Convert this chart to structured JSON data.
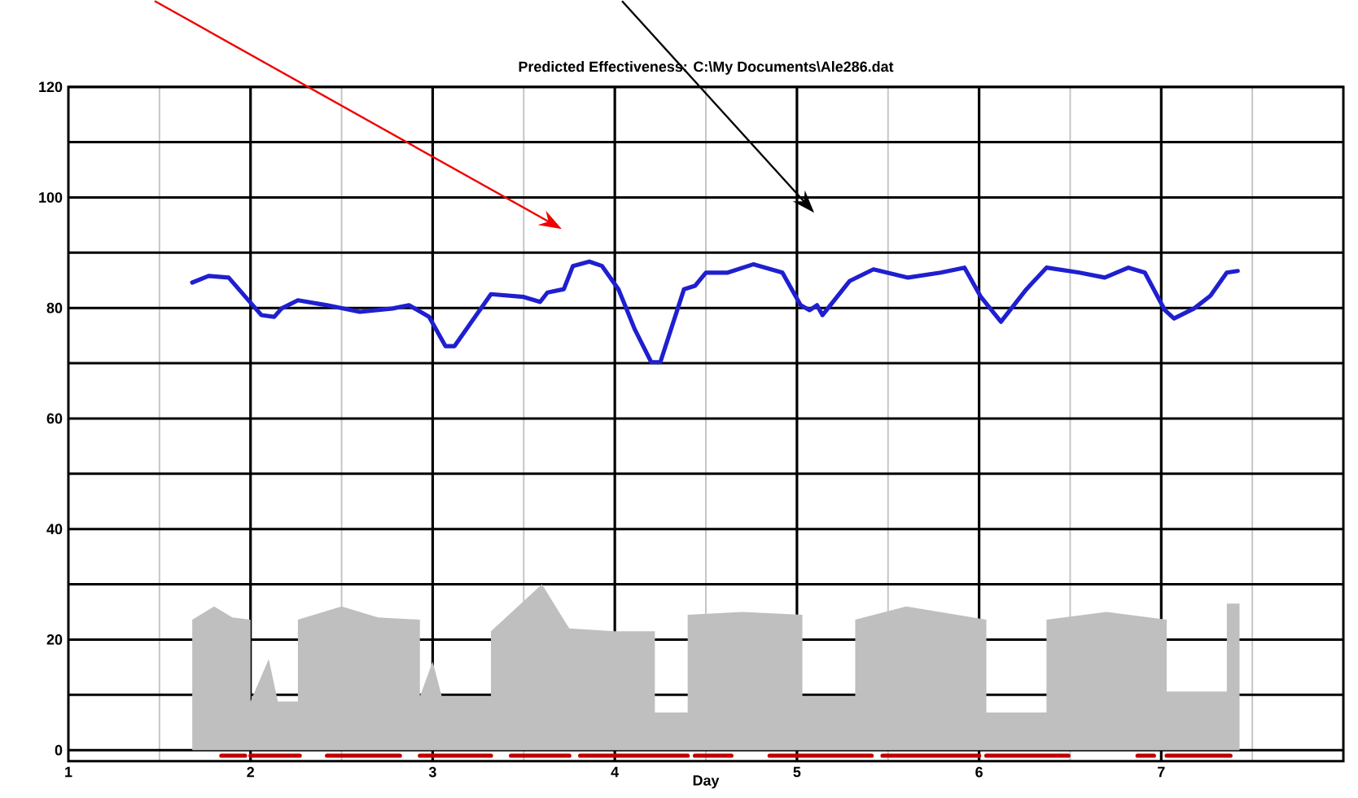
{
  "chart_data": {
    "type": "line",
    "title": "Predicted Effectiveness: C:\\My Documents\\Ale286.dat",
    "xlabel": "Day",
    "xlim": [
      1,
      8
    ],
    "ylim": [
      -2,
      120
    ],
    "xticks": [
      1,
      {
        "value": 1.5,
        "label": null
      },
      2,
      {
        "value": 2.5,
        "label": null
      },
      3,
      {
        "value": 3.5,
        "label": null
      },
      4,
      {
        "value": 4.5,
        "label": null
      },
      5,
      {
        "value": 5.5,
        "label": null
      },
      6,
      {
        "value": 6.5,
        "label": null
      },
      7,
      {
        "value": 7.5,
        "label": null
      }
    ],
    "yticks": [
      0,
      {
        "value": 10,
        "label": null
      },
      20,
      {
        "value": 30,
        "label": null
      },
      40,
      {
        "value": 50,
        "label": null
      },
      60,
      {
        "value": 70,
        "label": null
      },
      80,
      {
        "value": 90,
        "label": null
      },
      100,
      {
        "value": 110,
        "label": null
      },
      120
    ],
    "grid": true,
    "series": [
      {
        "type": "area",
        "color": "#bfbfbf",
        "x": [
          1.68,
          1.68,
          1.8,
          1.9,
          2.0,
          2.0,
          2.1,
          2.15,
          2.26,
          2.26,
          2.5,
          2.7,
          2.93,
          2.93,
          3.0,
          3.05,
          3.32,
          3.32,
          3.6,
          3.75,
          4.0,
          4.22,
          4.22,
          4.4,
          4.4,
          4.7,
          5.03,
          5.03,
          5.2,
          5.32,
          5.32,
          5.6,
          6.04,
          6.04,
          6.2,
          6.37,
          6.37,
          6.7,
          7.03,
          7.03,
          7.2,
          7.36,
          7.36,
          7.43,
          7.43
        ],
        "values": [
          0,
          23.6,
          26,
          24,
          23.6,
          8.8,
          16.5,
          8.8,
          8.8,
          23.6,
          26,
          24,
          23.6,
          9.7,
          16,
          9.7,
          9.7,
          21.5,
          30,
          22,
          21.5,
          21.5,
          6.8,
          6.8,
          24.5,
          25,
          24.5,
          9.7,
          9.7,
          9.7,
          23.6,
          26,
          23.6,
          6.8,
          6.8,
          6.8,
          23.6,
          25,
          23.6,
          10.6,
          10.6,
          10.6,
          26.5,
          26.5,
          0
        ]
      },
      {
        "color": "#1f1fd0",
        "x": [
          1.68,
          1.77,
          1.88,
          2.02,
          2.06,
          2.13,
          2.17,
          2.26,
          2.42,
          2.6,
          2.78,
          2.87,
          2.98,
          3.07,
          3.12,
          3.32,
          3.5,
          3.59,
          3.63,
          3.72,
          3.77,
          3.86,
          3.93,
          4.02,
          4.11,
          4.2,
          4.25,
          4.38,
          4.44,
          4.5,
          4.62,
          4.76,
          4.92,
          5.02,
          5.07,
          5.11,
          5.14,
          5.29,
          5.42,
          5.61,
          5.79,
          5.92,
          6.01,
          6.12,
          6.26,
          6.37,
          6.55,
          6.69,
          6.82,
          6.91,
          7.02,
          7.07,
          7.18,
          7.27,
          7.36,
          7.42
        ],
        "values": [
          84.6,
          85.8,
          85.5,
          80.2,
          78.7,
          78.4,
          79.9,
          81.4,
          80.5,
          79.3,
          79.9,
          80.5,
          78.4,
          73.1,
          73.1,
          82.5,
          82,
          81.1,
          82.8,
          83.4,
          87.6,
          88.4,
          87.6,
          83.4,
          76.1,
          70.2,
          70.2,
          83.4,
          84,
          86.4,
          86.4,
          87.9,
          86.4,
          80.5,
          79.6,
          80.5,
          78.7,
          84.9,
          87,
          85.5,
          86.4,
          87.3,
          82,
          77.5,
          83.4,
          87.3,
          86.4,
          85.5,
          87.3,
          86.4,
          79.6,
          78.1,
          79.9,
          82.2,
          86.4,
          86.7
        ]
      },
      {
        "color": "#c00000",
        "x": [
          1.84,
          1.97,
          1.98,
          2.0,
          2.27,
          2.3,
          2.42,
          2.82,
          2.85,
          2.93,
          3.32,
          3.36,
          3.43,
          3.75,
          3.78,
          3.81,
          4.4,
          4.42,
          4.44,
          4.64,
          4.7,
          4.85,
          5.41,
          5.44,
          5.47,
          6.0,
          6.02,
          6.04,
          6.49,
          6.6,
          6.87,
          6.96,
          6.98,
          7.03,
          7.38
        ],
        "values": [
          -1,
          -1,
          null,
          -1,
          -1,
          null,
          -1,
          -1,
          null,
          -1,
          -1,
          null,
          -1,
          -1,
          null,
          -1,
          -1,
          null,
          -1,
          -1,
          null,
          -1,
          -1,
          null,
          -1,
          -1,
          null,
          -1,
          -1,
          null,
          -1,
          -1,
          null,
          -1,
          -1
        ]
      }
    ],
    "ref_lines": [
      {
        "axis": "x",
        "value": 2,
        "color": "#000000"
      },
      {
        "axis": "x",
        "value": 3,
        "color": "#000000"
      },
      {
        "axis": "x",
        "value": 4,
        "color": "#000000"
      },
      {
        "axis": "x",
        "value": 5,
        "color": "#000000"
      },
      {
        "axis": "x",
        "value": 6,
        "color": "#000000"
      },
      {
        "axis": "x",
        "value": 7,
        "color": "#000000"
      }
    ]
  }
}
